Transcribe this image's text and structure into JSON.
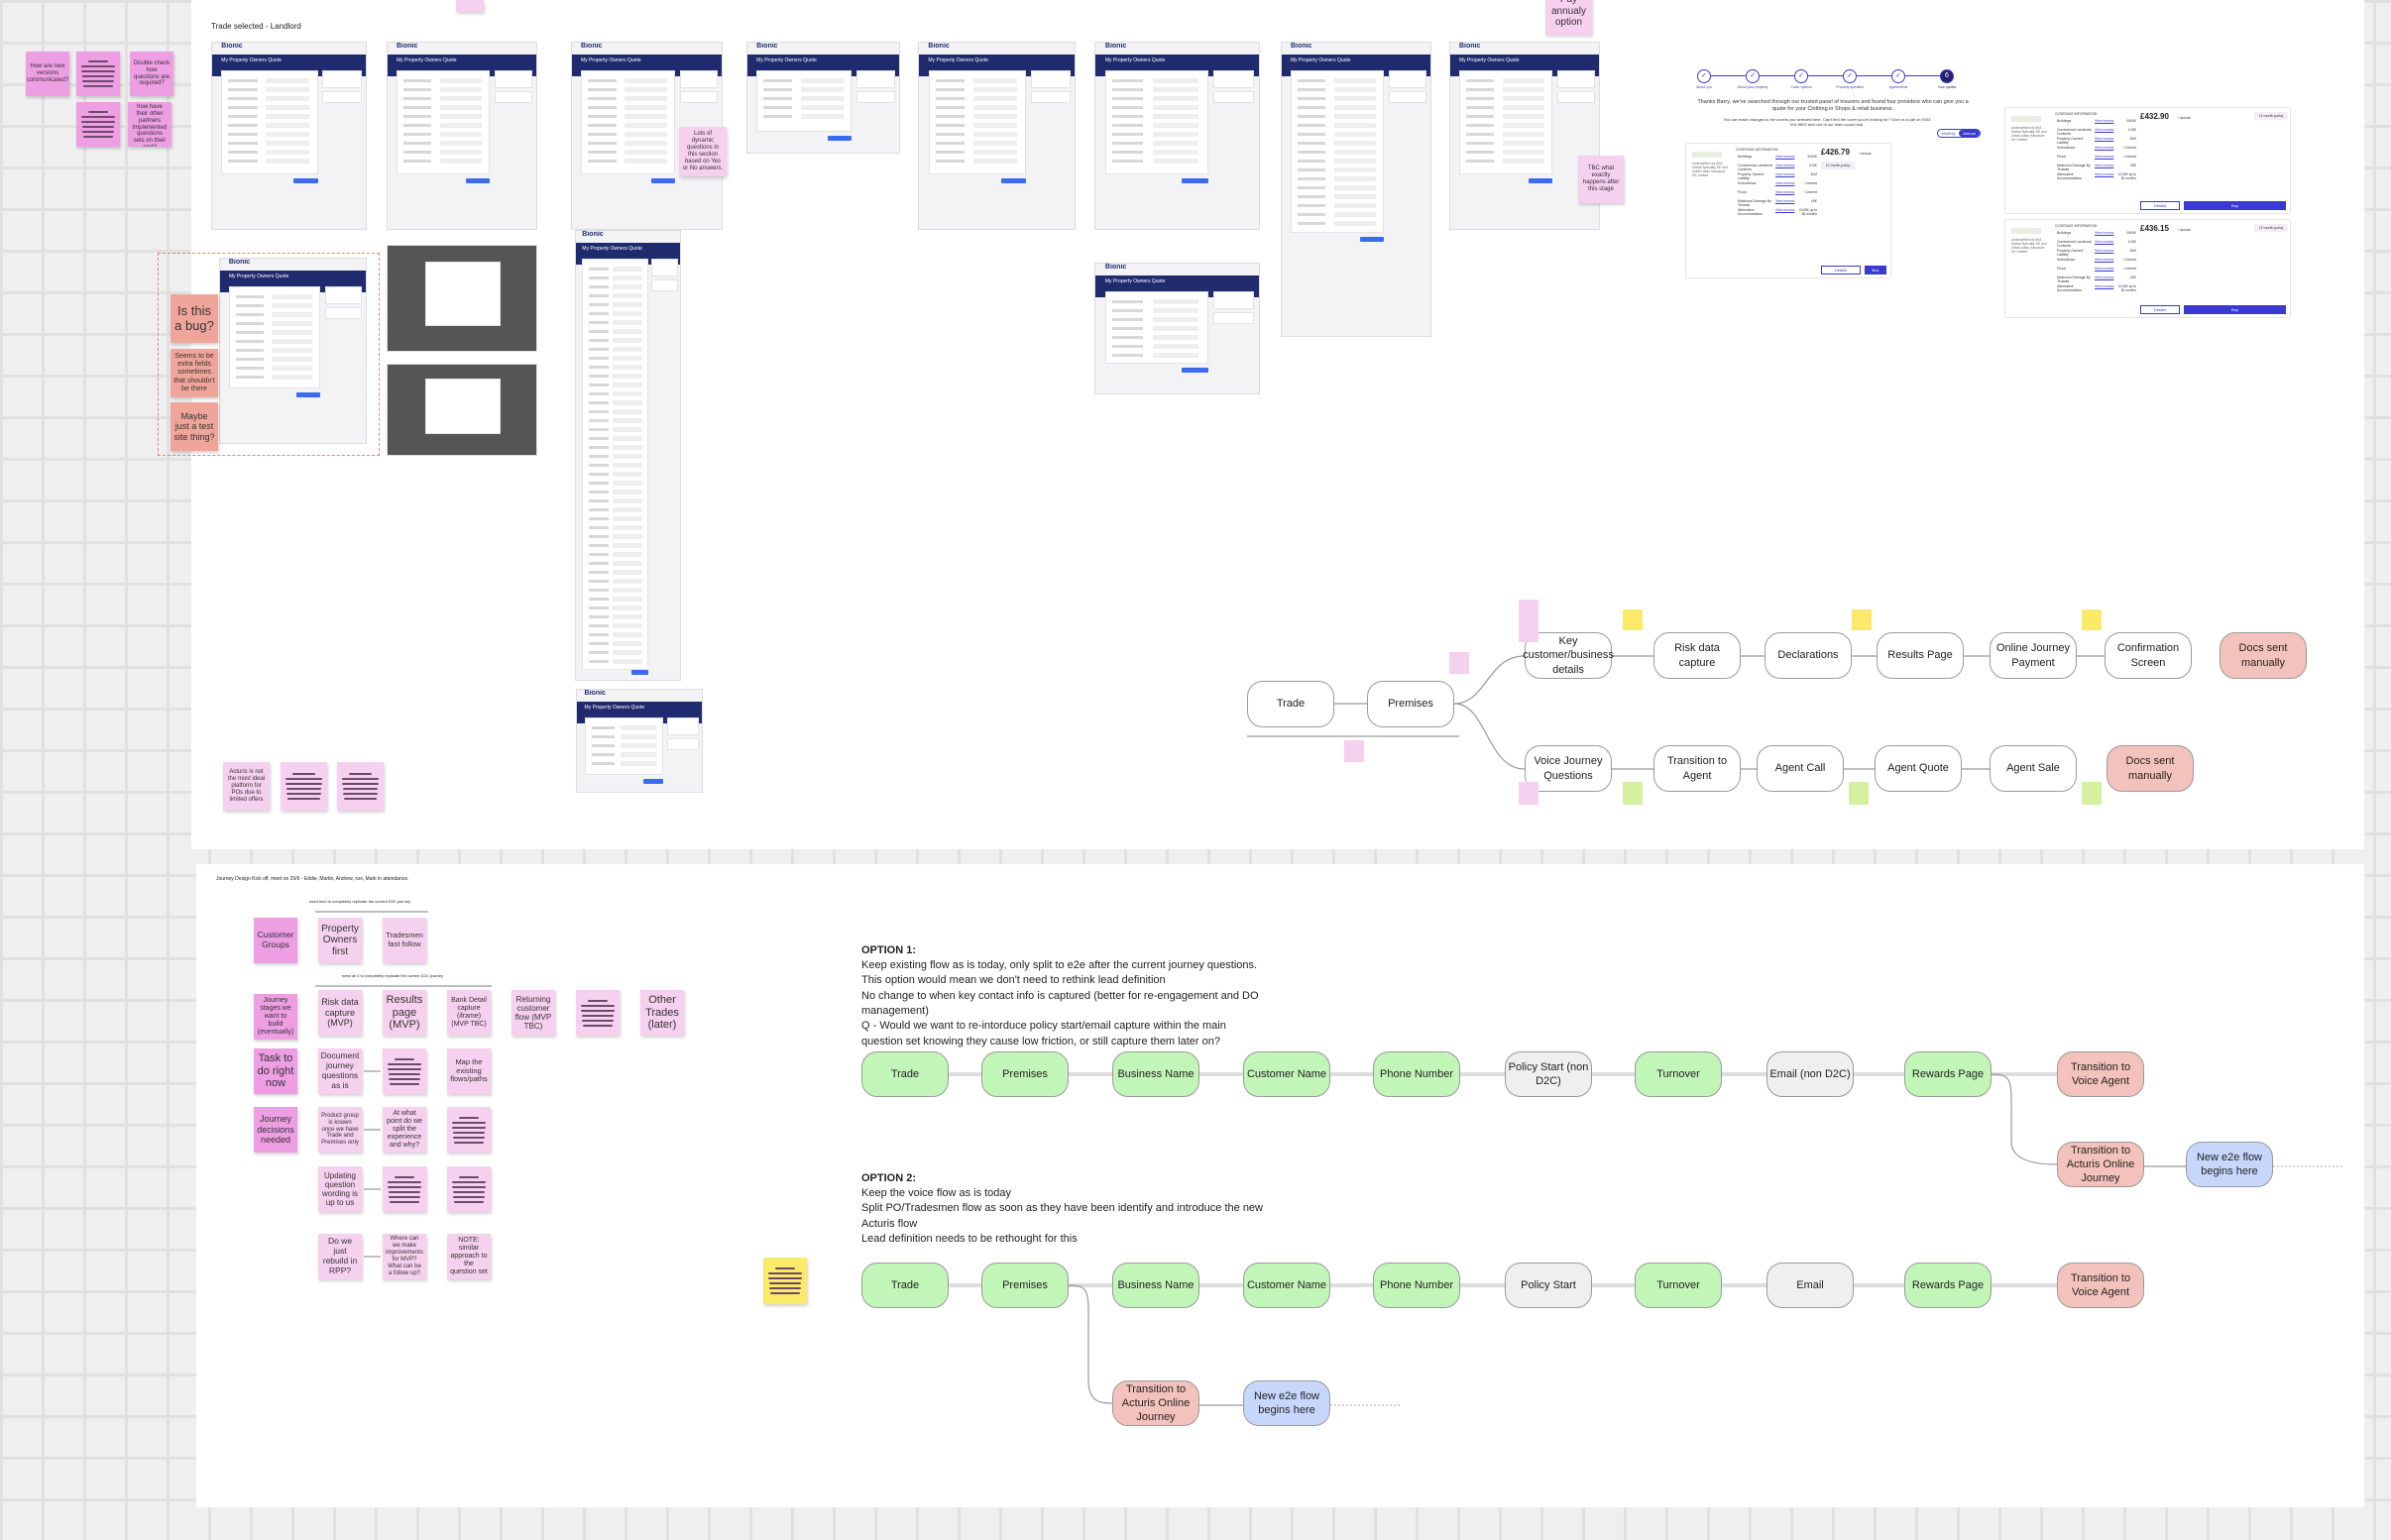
{
  "top_left_notes": [
    {
      "text": "How are new versions communicated?",
      "style": "text"
    },
    {
      "text": "",
      "style": "lines"
    },
    {
      "text": "Double check how questions are required?",
      "style": "text"
    },
    {
      "text": "",
      "style": "lines"
    },
    {
      "text": "Ask Acturis - how have their other partners implemented questions sets on their end?",
      "style": "text"
    }
  ],
  "screens": {
    "caption": "Trade selected - Landlord",
    "brand": "Bionic",
    "title": "My Property Owners Quote"
  },
  "review_notes": {
    "bug": "Is this a bug?",
    "extra_fields": "Seems to be extra fields sometimes that shouldn't be there",
    "test_site": "Maybe just a test site thing?",
    "dynamic": "Lots of dynamic questions in this section based on Yes or No answers.",
    "annual": "Pay annualy option",
    "tbc": "TBC what exactly happens after this stage",
    "acturis": "Acturis is not the most ideal platform for POs due to limited offers"
  },
  "results_page": {
    "steps": [
      "About you",
      "About your property",
      "Cover options",
      "Property specifics",
      "Agreements",
      "Your quotes"
    ],
    "current_step": "6",
    "thanks": "Thanks Barry, we've searched through our trusted panel of insurers and found four providers who can give you a quote for your Clothing in Shops & retail business.",
    "sub": "You can make changes to the covers you selected here. Can't find the cover you're looking for? Give us a call on 0333 004 6803 and one of our team could help.",
    "toggle": [
      "Monthly",
      "Annual"
    ],
    "coverage_heading": "COVERAGE INFORMATION",
    "underwritten": "Underwritten by AXA Global Specialty SE and Great Lakes Insurance UK Limited",
    "view_excess": "View excess",
    "policy": "12 month policy",
    "per": "/ annual",
    "details": "Details",
    "buy": "Buy",
    "covers": [
      [
        "Buildings",
        "£400K"
      ],
      [
        "Commercial Landlords Contents",
        "£15K"
      ],
      [
        "Property Owners' Liability",
        "£2M"
      ],
      [
        "Subsidence",
        "Covered"
      ],
      [
        "Flood",
        "Covered"
      ],
      [
        "Malicious Damage By Tenants",
        "£5K"
      ],
      [
        "Alternative Accommodation",
        "£100K up to 36 months"
      ]
    ],
    "prices": [
      "£426.79",
      "£432.90",
      "£436.15"
    ]
  },
  "top_flow": {
    "nodes": [
      {
        "label": "Trade",
        "color": "#ffffff"
      },
      {
        "label": "Premises",
        "color": "#ffffff"
      },
      {
        "label": "Key customer/business details",
        "color": "#ffffff"
      },
      {
        "label": "Risk data capture",
        "color": "#ffffff"
      },
      {
        "label": "Declarations",
        "color": "#ffffff"
      },
      {
        "label": "Results Page",
        "color": "#ffffff"
      },
      {
        "label": "Online Journey Payment",
        "color": "#ffffff"
      },
      {
        "label": "Confirmation Screen",
        "color": "#ffffff"
      },
      {
        "label": "Docs sent manually",
        "color": "#f4c2bc"
      },
      {
        "label": "Voice Journey Questions",
        "color": "#ffffff"
      },
      {
        "label": "Transition to Agent",
        "color": "#ffffff"
      },
      {
        "label": "Agent Call",
        "color": "#ffffff"
      },
      {
        "label": "Agent Quote",
        "color": "#ffffff"
      },
      {
        "label": "Agent Sale",
        "color": "#ffffff"
      },
      {
        "label": "Docs sent manually",
        "color": "#f4c2bc"
      }
    ]
  },
  "kickoff": {
    "header": "Journey Design Kick off, meet on 20/6 - Eddie, Martin, Andrew, xxx, Mark in attendance.",
    "bracket1": "need tech to completely replicate the current D2C journey",
    "bracket2": "need all 3 to completely replicate the current D2C journey",
    "notes": [
      {
        "text": "Customer Groups",
        "color": "#ee9ee3"
      },
      {
        "text": "Property Owners first",
        "color": "#f6d0ef"
      },
      {
        "text": "Tradesmen fast follow",
        "color": "#f6d0ef"
      },
      {
        "text": "Journey stages we want to build (eventually)",
        "color": "#ee9ee3"
      },
      {
        "text": "Risk data capture (MVP)",
        "color": "#f6d0ef"
      },
      {
        "text": "Results page (MVP)",
        "color": "#f6d0ef"
      },
      {
        "text": "Bank Detail capture (iframe) (MVP TBC)",
        "color": "#f6d0ef"
      },
      {
        "text": "Returning customer flow (MVP TBC)",
        "color": "#f6d0ef"
      },
      {
        "text": "",
        "color": "#f6d0ef"
      },
      {
        "text": "Other Trades (later)",
        "color": "#f6d0ef"
      },
      {
        "text": "Task to do right now",
        "color": "#ee9ee3"
      },
      {
        "text": "Document journey questions as is",
        "color": "#f6d0ef"
      },
      {
        "text": "",
        "color": "#f6d0ef"
      },
      {
        "text": "Map the existing flows/paths",
        "color": "#f6d0ef"
      },
      {
        "text": "Journey decisions needed",
        "color": "#ee9ee3"
      },
      {
        "text": "Product group is known once we have Trade and Premises only",
        "color": "#f6d0ef"
      },
      {
        "text": "At what point do we split the experience and why?",
        "color": "#f6d0ef"
      },
      {
        "text": "",
        "color": "#f6d0ef"
      },
      {
        "text": "Updating question wording is up to us",
        "color": "#f6d0ef"
      },
      {
        "text": "",
        "color": "#f6d0ef"
      },
      {
        "text": "",
        "color": "#f6d0ef"
      },
      {
        "text": "Do we just rebuild in RPP?",
        "color": "#f6d0ef"
      },
      {
        "text": "Where can we make improvements for MVP? What can be a follow up?",
        "color": "#f6d0ef"
      },
      {
        "text": "NOTE: similar approach to the question set",
        "color": "#f6d0ef"
      }
    ]
  },
  "option1": {
    "title": "OPTION 1:",
    "lines": [
      "Keep existing flow as is today, only split to e2e after the current journey questions.",
      "This option would mean we don't need to rethink lead definition",
      "No change to when key contact info is captured (better for re-engagement and DO",
      "management)",
      "Q - Would we want to re-intorduce policy start/email capture within the main",
      "question set knowing they cause low friction, or still capture them later on?"
    ],
    "nodes": [
      {
        "label": "Trade",
        "color": "#c2f5b8"
      },
      {
        "label": "Premises",
        "color": "#c2f5b8"
      },
      {
        "label": "Business Name",
        "color": "#c2f5b8"
      },
      {
        "label": "Customer Name",
        "color": "#c2f5b8"
      },
      {
        "label": "Phone Number",
        "color": "#c2f5b8"
      },
      {
        "label": "Policy Start (non D2C)",
        "color": "#efefef"
      },
      {
        "label": "Turnover",
        "color": "#c2f5b8"
      },
      {
        "label": "Email (non D2C)",
        "color": "#efefef"
      },
      {
        "label": "Rewards Page",
        "color": "#c2f5b8"
      },
      {
        "label": "Transition to Voice Agent",
        "color": "#f4c2bc"
      },
      {
        "label": "Transition to Acturis Online Journey",
        "color": "#f4c2bc"
      },
      {
        "label": "New e2e flow begins here",
        "color": "#c6d7fb"
      }
    ]
  },
  "option2": {
    "title": "OPTION 2:",
    "lines": [
      "Keep the voice flow as is today",
      "Split PO/Tradesmen flow as soon as they have been identify and introduce the new",
      "Acturis flow",
      "Lead definition needs to be rethought for this"
    ],
    "nodes": [
      {
        "label": "Trade",
        "color": "#c2f5b8"
      },
      {
        "label": "Premises",
        "color": "#c2f5b8"
      },
      {
        "label": "Business Name",
        "color": "#c2f5b8"
      },
      {
        "label": "Customer Name",
        "color": "#c2f5b8"
      },
      {
        "label": "Phone Number",
        "color": "#c2f5b8"
      },
      {
        "label": "Policy Start",
        "color": "#efefef"
      },
      {
        "label": "Turnover",
        "color": "#c2f5b8"
      },
      {
        "label": "Email",
        "color": "#efefef"
      },
      {
        "label": "Rewards Page",
        "color": "#c2f5b8"
      },
      {
        "label": "Transition to Voice Agent",
        "color": "#f4c2bc"
      },
      {
        "label": "Transition to Acturis Online Journey",
        "color": "#f4c2bc"
      },
      {
        "label": "New e2e flow begins here",
        "color": "#c6d7fb"
      }
    ]
  },
  "colors": {
    "navy": "#1f2b6e",
    "sticky_pink": "#f6d0ef",
    "sticky_magenta": "#ee9ee3",
    "sticky_salmon": "#f0a59b",
    "sticky_yellow": "#fbe96a",
    "sticky_green": "#d5f0a0"
  }
}
